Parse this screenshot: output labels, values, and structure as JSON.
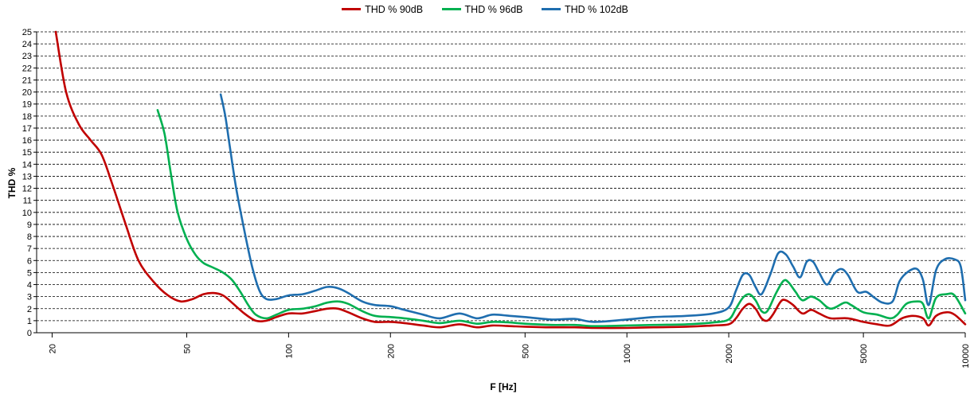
{
  "chart_data": {
    "type": "line",
    "xlabel": "F [Hz]",
    "ylabel": "THD %",
    "xscale": "log",
    "xlim": [
      18,
      10000
    ],
    "ylim": [
      0,
      25
    ],
    "grid": "horizontal dashed",
    "legend_position": "top-center",
    "x_ticks": [
      20,
      50,
      100,
      200,
      500,
      1000,
      2000,
      5000,
      10000
    ],
    "x_tick_labels": [
      "20",
      "50",
      "100",
      "200",
      "500",
      "1000",
      "2000",
      "5000",
      "10000"
    ],
    "y_ticks": [
      0,
      1,
      2,
      3,
      4,
      5,
      6,
      7,
      8,
      9,
      10,
      11,
      12,
      13,
      14,
      15,
      16,
      17,
      18,
      19,
      20,
      21,
      22,
      23,
      24,
      25
    ],
    "series": [
      {
        "name": "THD % 90dB",
        "color": "#c00000",
        "points": [
          [
            20.5,
            25
          ],
          [
            22,
            20
          ],
          [
            24,
            17.3
          ],
          [
            26,
            16
          ],
          [
            28,
            14.8
          ],
          [
            30,
            12.5
          ],
          [
            33,
            9
          ],
          [
            36,
            6
          ],
          [
            40,
            4.2
          ],
          [
            44,
            3.1
          ],
          [
            48,
            2.6
          ],
          [
            52,
            2.8
          ],
          [
            56,
            3.2
          ],
          [
            60,
            3.3
          ],
          [
            64,
            3.1
          ],
          [
            68,
            2.5
          ],
          [
            74,
            1.6
          ],
          [
            80,
            1.0
          ],
          [
            86,
            1.0
          ],
          [
            92,
            1.3
          ],
          [
            100,
            1.6
          ],
          [
            110,
            1.6
          ],
          [
            120,
            1.8
          ],
          [
            130,
            2.0
          ],
          [
            140,
            2.0
          ],
          [
            150,
            1.7
          ],
          [
            165,
            1.2
          ],
          [
            180,
            0.9
          ],
          [
            200,
            0.9
          ],
          [
            220,
            0.8
          ],
          [
            250,
            0.6
          ],
          [
            280,
            0.45
          ],
          [
            320,
            0.7
          ],
          [
            360,
            0.45
          ],
          [
            400,
            0.6
          ],
          [
            450,
            0.55
          ],
          [
            500,
            0.5
          ],
          [
            600,
            0.45
          ],
          [
            700,
            0.45
          ],
          [
            800,
            0.4
          ],
          [
            1000,
            0.4
          ],
          [
            1200,
            0.45
          ],
          [
            1500,
            0.5
          ],
          [
            1800,
            0.6
          ],
          [
            2000,
            0.7
          ],
          [
            2100,
            1.2
          ],
          [
            2200,
            2.0
          ],
          [
            2300,
            2.4
          ],
          [
            2400,
            2.0
          ],
          [
            2500,
            1.2
          ],
          [
            2600,
            1.0
          ],
          [
            2700,
            1.5
          ],
          [
            2850,
            2.6
          ],
          [
            2950,
            2.7
          ],
          [
            3100,
            2.3
          ],
          [
            3300,
            1.6
          ],
          [
            3500,
            1.9
          ],
          [
            3700,
            1.6
          ],
          [
            4000,
            1.2
          ],
          [
            4500,
            1.2
          ],
          [
            5000,
            0.9
          ],
          [
            5500,
            0.7
          ],
          [
            6000,
            0.6
          ],
          [
            6500,
            1.2
          ],
          [
            7000,
            1.4
          ],
          [
            7500,
            1.2
          ],
          [
            7800,
            0.6
          ],
          [
            8200,
            1.4
          ],
          [
            8800,
            1.7
          ],
          [
            9300,
            1.5
          ],
          [
            10000,
            0.7
          ]
        ]
      },
      {
        "name": "THD % 96dB",
        "color": "#00b050",
        "points": [
          [
            41,
            18.5
          ],
          [
            43,
            16.5
          ],
          [
            45,
            13
          ],
          [
            47,
            10
          ],
          [
            50,
            7.8
          ],
          [
            53,
            6.5
          ],
          [
            56,
            5.8
          ],
          [
            60,
            5.4
          ],
          [
            64,
            5.0
          ],
          [
            68,
            4.4
          ],
          [
            72,
            3.4
          ],
          [
            76,
            2.3
          ],
          [
            80,
            1.5
          ],
          [
            86,
            1.2
          ],
          [
            92,
            1.5
          ],
          [
            100,
            1.9
          ],
          [
            110,
            2.0
          ],
          [
            120,
            2.2
          ],
          [
            130,
            2.5
          ],
          [
            140,
            2.6
          ],
          [
            150,
            2.4
          ],
          [
            165,
            1.8
          ],
          [
            180,
            1.4
          ],
          [
            200,
            1.3
          ],
          [
            220,
            1.2
          ],
          [
            250,
            1.0
          ],
          [
            280,
            0.8
          ],
          [
            320,
            1.0
          ],
          [
            360,
            0.75
          ],
          [
            400,
            0.9
          ],
          [
            450,
            0.85
          ],
          [
            500,
            0.75
          ],
          [
            600,
            0.65
          ],
          [
            700,
            0.65
          ],
          [
            800,
            0.55
          ],
          [
            1000,
            0.6
          ],
          [
            1200,
            0.65
          ],
          [
            1500,
            0.7
          ],
          [
            1800,
            0.85
          ],
          [
            2000,
            1.1
          ],
          [
            2100,
            2.0
          ],
          [
            2200,
            2.9
          ],
          [
            2300,
            3.2
          ],
          [
            2400,
            2.7
          ],
          [
            2500,
            1.8
          ],
          [
            2600,
            1.8
          ],
          [
            2750,
            3.2
          ],
          [
            2900,
            4.3
          ],
          [
            3000,
            4.2
          ],
          [
            3150,
            3.4
          ],
          [
            3300,
            2.7
          ],
          [
            3500,
            3.0
          ],
          [
            3700,
            2.7
          ],
          [
            4000,
            2.0
          ],
          [
            4400,
            2.5
          ],
          [
            4600,
            2.3
          ],
          [
            5000,
            1.7
          ],
          [
            5500,
            1.5
          ],
          [
            6000,
            1.2
          ],
          [
            6300,
            1.5
          ],
          [
            6700,
            2.4
          ],
          [
            7200,
            2.6
          ],
          [
            7500,
            2.4
          ],
          [
            7800,
            1.2
          ],
          [
            8200,
            2.9
          ],
          [
            8800,
            3.2
          ],
          [
            9300,
            3.1
          ],
          [
            10000,
            1.6
          ]
        ]
      },
      {
        "name": "THD % 102dB",
        "color": "#1f6eaf",
        "points": [
          [
            63,
            19.8
          ],
          [
            65,
            18
          ],
          [
            67,
            15.5
          ],
          [
            70,
            12
          ],
          [
            74,
            8.5
          ],
          [
            78,
            5.5
          ],
          [
            82,
            3.5
          ],
          [
            86,
            2.8
          ],
          [
            92,
            2.8
          ],
          [
            100,
            3.1
          ],
          [
            110,
            3.2
          ],
          [
            120,
            3.5
          ],
          [
            130,
            3.8
          ],
          [
            140,
            3.7
          ],
          [
            150,
            3.3
          ],
          [
            165,
            2.6
          ],
          [
            180,
            2.3
          ],
          [
            200,
            2.2
          ],
          [
            220,
            1.9
          ],
          [
            250,
            1.5
          ],
          [
            280,
            1.2
          ],
          [
            320,
            1.6
          ],
          [
            360,
            1.2
          ],
          [
            400,
            1.5
          ],
          [
            450,
            1.4
          ],
          [
            500,
            1.3
          ],
          [
            600,
            1.1
          ],
          [
            700,
            1.15
          ],
          [
            800,
            0.9
          ],
          [
            1000,
            1.1
          ],
          [
            1200,
            1.3
          ],
          [
            1500,
            1.4
          ],
          [
            1800,
            1.6
          ],
          [
            2000,
            2.1
          ],
          [
            2100,
            3.5
          ],
          [
            2200,
            4.8
          ],
          [
            2300,
            4.8
          ],
          [
            2400,
            3.8
          ],
          [
            2500,
            3.2
          ],
          [
            2650,
            4.8
          ],
          [
            2800,
            6.6
          ],
          [
            2950,
            6.5
          ],
          [
            3100,
            5.5
          ],
          [
            3250,
            4.6
          ],
          [
            3400,
            5.9
          ],
          [
            3550,
            5.9
          ],
          [
            3700,
            5.0
          ],
          [
            3900,
            4.0
          ],
          [
            4100,
            4.9
          ],
          [
            4300,
            5.3
          ],
          [
            4500,
            4.8
          ],
          [
            4800,
            3.4
          ],
          [
            5100,
            3.4
          ],
          [
            5400,
            2.9
          ],
          [
            5700,
            2.5
          ],
          [
            6100,
            2.6
          ],
          [
            6400,
            4.3
          ],
          [
            6800,
            5.1
          ],
          [
            7200,
            5.3
          ],
          [
            7500,
            4.4
          ],
          [
            7800,
            2.3
          ],
          [
            8200,
            5.2
          ],
          [
            8700,
            6.1
          ],
          [
            9300,
            6.1
          ],
          [
            9700,
            5.5
          ],
          [
            10000,
            2.7
          ]
        ]
      }
    ]
  }
}
